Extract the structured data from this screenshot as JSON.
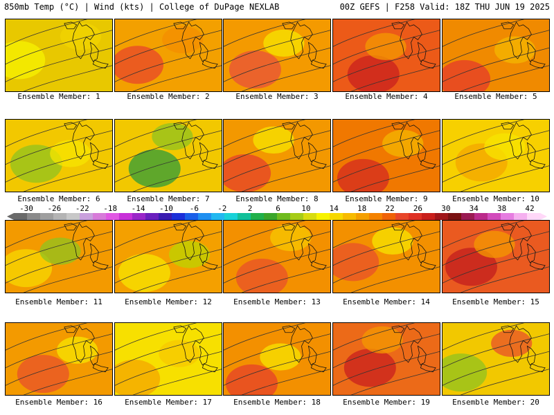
{
  "header": {
    "title_left": "850mb Temp (°C) | Wind (kts) | College of DuPage NEXLAB",
    "title_right": "00Z GEFS | F258 Valid: 18Z THU JUN 19 2025"
  },
  "panels": [
    {
      "label": "Ensemble Member: 1",
      "base": "#e8c800",
      "accents": [
        "#f7f300",
        "#f2d400"
      ]
    },
    {
      "label": "Ensemble Member: 2",
      "base": "#f3a000",
      "accents": [
        "#e8462a",
        "#f48d00"
      ]
    },
    {
      "label": "Ensemble Member: 3",
      "base": "#f49a00",
      "accents": [
        "#e8503a",
        "#f7e500"
      ]
    },
    {
      "label": "Ensemble Member: 4",
      "base": "#ec5a18",
      "accents": [
        "#c9201d",
        "#f49a00"
      ]
    },
    {
      "label": "Ensemble Member: 5",
      "base": "#f08a00",
      "accents": [
        "#e63a2a",
        "#f4b700"
      ]
    },
    {
      "label": "Ensemble Member: 6",
      "base": "#f2c800",
      "accents": [
        "#8fc31f",
        "#f7e500"
      ]
    },
    {
      "label": "Ensemble Member: 7",
      "base": "#f2c800",
      "accents": [
        "#2e9c3a",
        "#8fc31f"
      ]
    },
    {
      "label": "Ensemble Member: 8",
      "base": "#f39800",
      "accents": [
        "#e5402a",
        "#f7e500"
      ]
    },
    {
      "label": "Ensemble Member: 9",
      "base": "#f07800",
      "accents": [
        "#d42a20",
        "#f4b700"
      ]
    },
    {
      "label": "Ensemble Member: 10",
      "base": "#f7d000",
      "accents": [
        "#f4a500",
        "#f7e500"
      ]
    },
    {
      "label": "Ensemble Member: 11",
      "base": "#f39a00",
      "accents": [
        "#f7d800",
        "#8fc31f"
      ]
    },
    {
      "label": "Ensemble Member: 12",
      "base": "#f4a000",
      "accents": [
        "#f7e500",
        "#bcd400"
      ]
    },
    {
      "label": "Ensemble Member: 13",
      "base": "#f39000",
      "accents": [
        "#e8502a",
        "#f7c800"
      ]
    },
    {
      "label": "Ensemble Member: 14",
      "base": "#f39000",
      "accents": [
        "#e8502a",
        "#f7e500"
      ]
    },
    {
      "label": "Ensemble Member: 15",
      "base": "#ea5a20",
      "accents": [
        "#c11e1e",
        "#f49a00"
      ]
    },
    {
      "label": "Ensemble Member: 16",
      "base": "#f39a00",
      "accents": [
        "#e8502a",
        "#f7e500"
      ]
    },
    {
      "label": "Ensemble Member: 17",
      "base": "#f7e000",
      "accents": [
        "#f4a500",
        "#f7c800"
      ]
    },
    {
      "label": "Ensemble Member: 18",
      "base": "#f39000",
      "accents": [
        "#e5402a",
        "#f7e500"
      ]
    },
    {
      "label": "Ensemble Member: 19",
      "base": "#ec6a18",
      "accents": [
        "#c9201d",
        "#f49a00"
      ]
    },
    {
      "label": "Ensemble Member: 20",
      "base": "#f2c800",
      "accents": [
        "#8fc31f",
        "#e8502a"
      ]
    }
  ],
  "colorbar": {
    "ticks": [
      "-30",
      "-26",
      "-22",
      "-18",
      "-14",
      "-10",
      "-6",
      "-2",
      "2",
      "6",
      "10",
      "14",
      "18",
      "22",
      "26",
      "30",
      "34",
      "38",
      "42"
    ],
    "colors": [
      "#6a6a6a",
      "#8a8a8a",
      "#9f9f9f",
      "#b4b4b4",
      "#c8c8c8",
      "#c9a0dc",
      "#d77bd9",
      "#e157e3",
      "#c830d8",
      "#9a26c8",
      "#6a1fbd",
      "#3a1cb0",
      "#1c2fd8",
      "#1a5fe8",
      "#1f8ff0",
      "#22b8f0",
      "#18d2d8",
      "#12c09a",
      "#20b04a",
      "#3aa52a",
      "#6fbb1e",
      "#a6cc17",
      "#d8dc10",
      "#f7f300",
      "#f7d800",
      "#f7bb00",
      "#f49f00",
      "#f48200",
      "#ef6208",
      "#e8462a",
      "#de3024",
      "#c91f1c",
      "#a0161a",
      "#7a1212",
      "#9a1a52",
      "#bb2a8a",
      "#d24bbb",
      "#e67de0",
      "#f5b0ef",
      "#ffd8f8"
    ]
  }
}
